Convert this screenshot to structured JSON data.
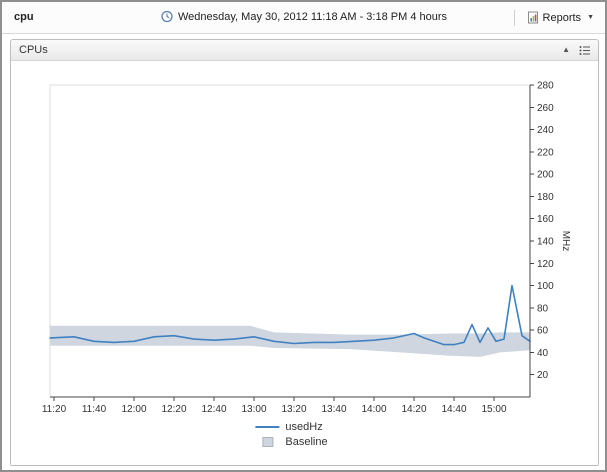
{
  "header": {
    "title": "cpu",
    "time_range": "Wednesday, May 30, 2012 11:18 AM - 3:18 PM 4 hours",
    "reports_label": "Reports"
  },
  "panel": {
    "title": "CPUs"
  },
  "chart_data": {
    "type": "line",
    "title": "CPUs",
    "ylabel": "MHz",
    "ylim": [
      0,
      280
    ],
    "y_ticks": [
      20,
      40,
      60,
      80,
      100,
      120,
      140,
      160,
      180,
      200,
      220,
      240,
      260,
      280
    ],
    "x_range_minutes": [
      0,
      240
    ],
    "x_ticks": [
      {
        "t": 2,
        "label": "11:20"
      },
      {
        "t": 22,
        "label": "11:40"
      },
      {
        "t": 42,
        "label": "12:00"
      },
      {
        "t": 62,
        "label": "12:20"
      },
      {
        "t": 82,
        "label": "12:40"
      },
      {
        "t": 102,
        "label": "13:00"
      },
      {
        "t": 122,
        "label": "13:20"
      },
      {
        "t": 142,
        "label": "13:40"
      },
      {
        "t": 162,
        "label": "14:00"
      },
      {
        "t": 182,
        "label": "14:20"
      },
      {
        "t": 202,
        "label": "14:40"
      },
      {
        "t": 222,
        "label": "15:00"
      }
    ],
    "grid": "off",
    "legend_position": "bottom",
    "series": [
      {
        "name": "usedHz",
        "color": "#3f81c1",
        "points": [
          [
            0,
            53
          ],
          [
            12,
            54
          ],
          [
            22,
            50
          ],
          [
            32,
            49
          ],
          [
            42,
            50
          ],
          [
            52,
            54
          ],
          [
            62,
            55
          ],
          [
            72,
            52
          ],
          [
            82,
            51
          ],
          [
            92,
            52
          ],
          [
            102,
            54
          ],
          [
            112,
            50
          ],
          [
            122,
            48
          ],
          [
            132,
            49
          ],
          [
            142,
            49
          ],
          [
            152,
            50
          ],
          [
            162,
            51
          ],
          [
            172,
            53
          ],
          [
            182,
            57
          ],
          [
            187,
            53
          ],
          [
            192,
            50
          ],
          [
            197,
            47
          ],
          [
            202,
            47
          ],
          [
            207,
            49
          ],
          [
            211,
            65
          ],
          [
            215,
            49
          ],
          [
            219,
            62
          ],
          [
            223,
            50
          ],
          [
            227,
            52
          ],
          [
            231,
            100
          ],
          [
            236,
            55
          ],
          [
            240,
            50
          ]
        ]
      }
    ],
    "baseline": {
      "name": "Baseline",
      "color": "#cfd6df",
      "points": [
        [
          0,
          46,
          64
        ],
        [
          100,
          46,
          64
        ],
        [
          112,
          44,
          58
        ],
        [
          150,
          43,
          56
        ],
        [
          175,
          40,
          56
        ],
        [
          200,
          37,
          57
        ],
        [
          215,
          36,
          57
        ],
        [
          225,
          40,
          58
        ],
        [
          240,
          42,
          58
        ]
      ]
    }
  }
}
